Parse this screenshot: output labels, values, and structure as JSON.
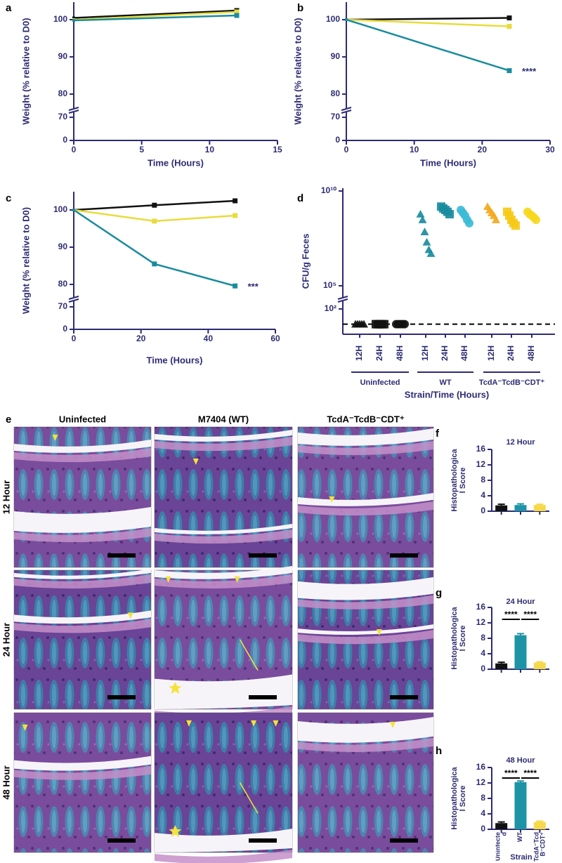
{
  "chart_data": [
    {
      "type": "line",
      "label": "a",
      "xlabel": "Time (Hours)",
      "ylabel": "Weight (% relative to D0)",
      "x": [
        0,
        12
      ],
      "xlim": [
        0,
        15
      ],
      "xticks": [
        0,
        5,
        10,
        15
      ],
      "ylim": [
        0,
        105
      ],
      "yticks": [
        0,
        70,
        80,
        90,
        100
      ],
      "axis_break": true,
      "series": [
        {
          "color": "#111111",
          "values": [
            100.5,
            102.6
          ]
        },
        {
          "color": "#e8dc3c",
          "values": [
            100,
            102.2
          ]
        },
        {
          "color": "#1a8c9e",
          "values": [
            99.8,
            101.2
          ]
        }
      ]
    },
    {
      "type": "line",
      "label": "b",
      "xlabel": "Time (Hours)",
      "ylabel": "Weight (% relative to D0)",
      "x": [
        0,
        24
      ],
      "xlim": [
        0,
        30
      ],
      "xticks": [
        0,
        10,
        20,
        30
      ],
      "ylim": [
        0,
        105
      ],
      "yticks": [
        0,
        70,
        80,
        90,
        100
      ],
      "axis_break": true,
      "series": [
        {
          "color": "#111111",
          "values": [
            100,
            100.5
          ]
        },
        {
          "color": "#e8dc3c",
          "values": [
            100,
            98.2
          ]
        },
        {
          "color": "#1a8c9e",
          "values": [
            100,
            86.3
          ]
        }
      ],
      "annotation": "****"
    },
    {
      "type": "line",
      "label": "c",
      "xlabel": "Time (Hours)",
      "ylabel": "Weight (% relative to D0)",
      "x": [
        0,
        24,
        48
      ],
      "xlim": [
        0,
        60
      ],
      "xticks": [
        0,
        20,
        40,
        60
      ],
      "ylim": [
        0,
        105
      ],
      "yticks": [
        0,
        70,
        80,
        90,
        100
      ],
      "axis_break": true,
      "series": [
        {
          "color": "#111111",
          "values": [
            100,
            101.3,
            102.5
          ]
        },
        {
          "color": "#e8dc3c",
          "values": [
            100,
            97,
            98.5
          ]
        },
        {
          "color": "#1a8c9e",
          "values": [
            100,
            85.5,
            79.3
          ]
        }
      ],
      "annotation": "***"
    },
    {
      "type": "strip",
      "label": "d",
      "ylabel": "CFU/g Feces",
      "xlabel": "Strain/Time (Hours)",
      "log_scale": true,
      "axis_break": true,
      "ylim": [
        10,
        10000000000
      ],
      "yticks": [
        {
          "value": 100,
          "label": "10²"
        },
        {
          "value": 100000,
          "label": "10⁵"
        },
        {
          "value": 10000000000,
          "label": "10¹⁰"
        }
      ],
      "detection_limit": 25,
      "categories": [
        "12H",
        "24H",
        "48H",
        "12H",
        "24H",
        "48H",
        "12H",
        "24H",
        "48H"
      ],
      "groups": [
        "Uninfected",
        "WT",
        "TcdA⁻TcdB⁻CDT⁺"
      ],
      "series": [
        {
          "marker": "triangle",
          "color": "#111111",
          "values": [
            25,
            25,
            25,
            25,
            25
          ]
        },
        {
          "marker": "square",
          "color": "#111111",
          "values": [
            25,
            25,
            25,
            25,
            25
          ]
        },
        {
          "marker": "circle",
          "color": "#111111",
          "values": [
            25,
            25,
            25,
            25,
            25
          ]
        },
        {
          "marker": "triangle",
          "color": "#1a8c9e",
          "values": [
            600000000,
            300000000,
            70000000,
            20000000,
            8000000,
            5000000
          ]
        },
        {
          "marker": "square",
          "color": "#1a8c9e",
          "values": [
            1500000000,
            1200000000,
            1000000000,
            800000000,
            600000000
          ]
        },
        {
          "marker": "circle",
          "color": "#3bbbd6",
          "values": [
            1000000000,
            700000000,
            500000000,
            300000000,
            200000000
          ]
        },
        {
          "marker": "triangle",
          "color": "#f3a81c",
          "values": [
            1500000000,
            1000000000,
            700000000,
            500000000,
            300000000
          ]
        },
        {
          "marker": "square",
          "color": "#f6c917",
          "values": [
            800000000,
            500000000,
            300000000,
            200000000,
            150000000
          ]
        },
        {
          "marker": "circle",
          "color": "#f6d81c",
          "values": [
            800000000,
            600000000,
            500000000,
            400000000,
            300000000
          ]
        }
      ]
    },
    {
      "type": "bar",
      "label": "f",
      "title": "12 Hour",
      "ylabel": "Histopathological Score",
      "categories": [
        null,
        null,
        null
      ],
      "values": [
        1.5,
        1.6,
        1.6
      ],
      "errors": [
        0.3,
        0.3,
        0.2
      ],
      "colors": [
        "#111111",
        "#1d93a6",
        "#f5d94a"
      ],
      "ylim": [
        0,
        16
      ],
      "yticks": [
        0,
        4,
        8,
        12,
        16
      ]
    },
    {
      "type": "bar",
      "label": "g",
      "title": "24 Hour",
      "ylabel": "Histopathological Score",
      "categories": [
        null,
        null,
        null
      ],
      "values": [
        1.5,
        8.8,
        1.7
      ],
      "errors": [
        0.3,
        0.4,
        0.2
      ],
      "colors": [
        "#111111",
        "#1d93a6",
        "#f5d94a"
      ],
      "ylim": [
        0,
        16
      ],
      "yticks": [
        0,
        4,
        8,
        12,
        16
      ],
      "significance": [
        "****",
        "****"
      ]
    },
    {
      "type": "bar",
      "label": "h",
      "title": "48 Hour",
      "ylabel": "Histopathological Score",
      "xlabel": "Strain",
      "categories": [
        "Uninfected",
        "WT",
        "TcdA⁻TcdB⁻CDT⁺"
      ],
      "values": [
        1.6,
        12.2,
        1.9
      ],
      "errors": [
        0.3,
        0.3,
        0.2
      ],
      "colors": [
        "#111111",
        "#1d93a6",
        "#f5d94a"
      ],
      "ylim": [
        0,
        16
      ],
      "yticks": [
        0,
        4,
        8,
        12,
        16
      ],
      "significance": [
        "****",
        "****"
      ]
    }
  ],
  "histology": {
    "label": "e",
    "columns": [
      "Uninfected",
      "M7404 (WT)",
      "TcdA⁻TcdB⁻CDT⁺"
    ],
    "rows": [
      "12 Hour",
      "24 Hour",
      "48 Hour"
    ]
  }
}
